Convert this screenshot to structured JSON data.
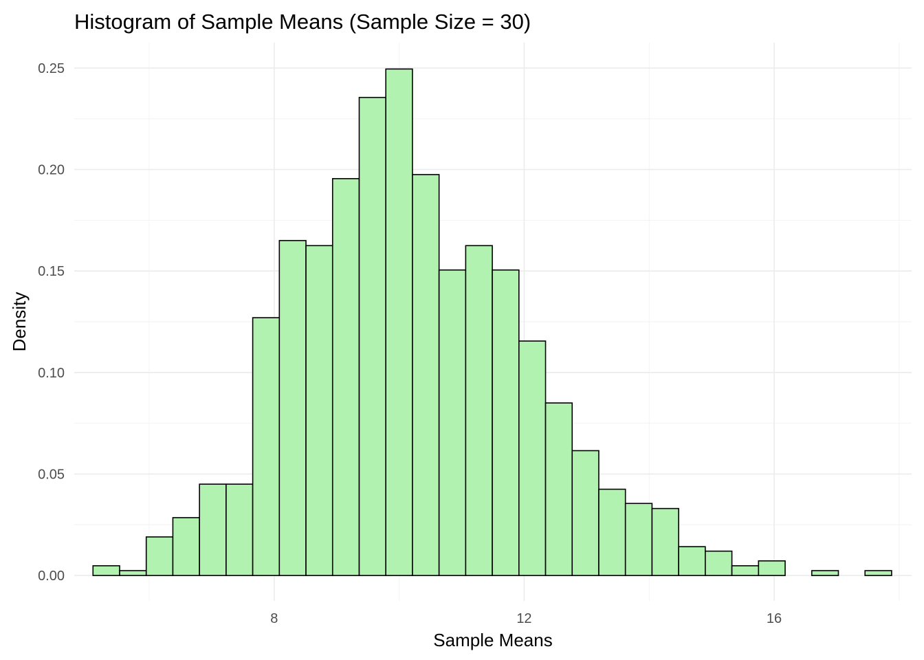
{
  "chart_data": {
    "type": "bar",
    "subtype": "histogram",
    "title": "Histogram of Sample Means (Sample Size = 30)",
    "xlabel": "Sample Means",
    "ylabel": "Density",
    "xlim": [
      4.8,
      18.2
    ],
    "ylim": [
      -0.0125,
      0.2625
    ],
    "x_ticks": [
      8,
      12,
      16
    ],
    "x_tick_labels": [
      "8",
      "12",
      "16"
    ],
    "x_minor_ticks": [
      6,
      10,
      14,
      18
    ],
    "y_ticks": [
      0,
      0.05,
      0.1,
      0.15,
      0.2,
      0.25
    ],
    "y_tick_labels": [
      "0.00",
      "0.05",
      "0.10",
      "0.15",
      "0.20",
      "0.25"
    ],
    "y_minor_ticks": [
      0.025,
      0.075,
      0.125,
      0.175,
      0.225
    ],
    "grid": true,
    "bar_fill": "#b2f2b0",
    "bar_stroke": "#000000",
    "bin_start": 5.1,
    "bin_width": 0.426,
    "values": [
      0.0048,
      0.0024,
      0.019,
      0.0285,
      0.045,
      0.045,
      0.127,
      0.165,
      0.1625,
      0.1955,
      0.2355,
      0.2495,
      0.1975,
      0.1505,
      0.1625,
      0.1505,
      0.1155,
      0.085,
      0.0615,
      0.0425,
      0.0355,
      0.033,
      0.0142,
      0.012,
      0.0048,
      0.0072,
      0.0,
      0.0024,
      0.0,
      0.0024
    ]
  }
}
